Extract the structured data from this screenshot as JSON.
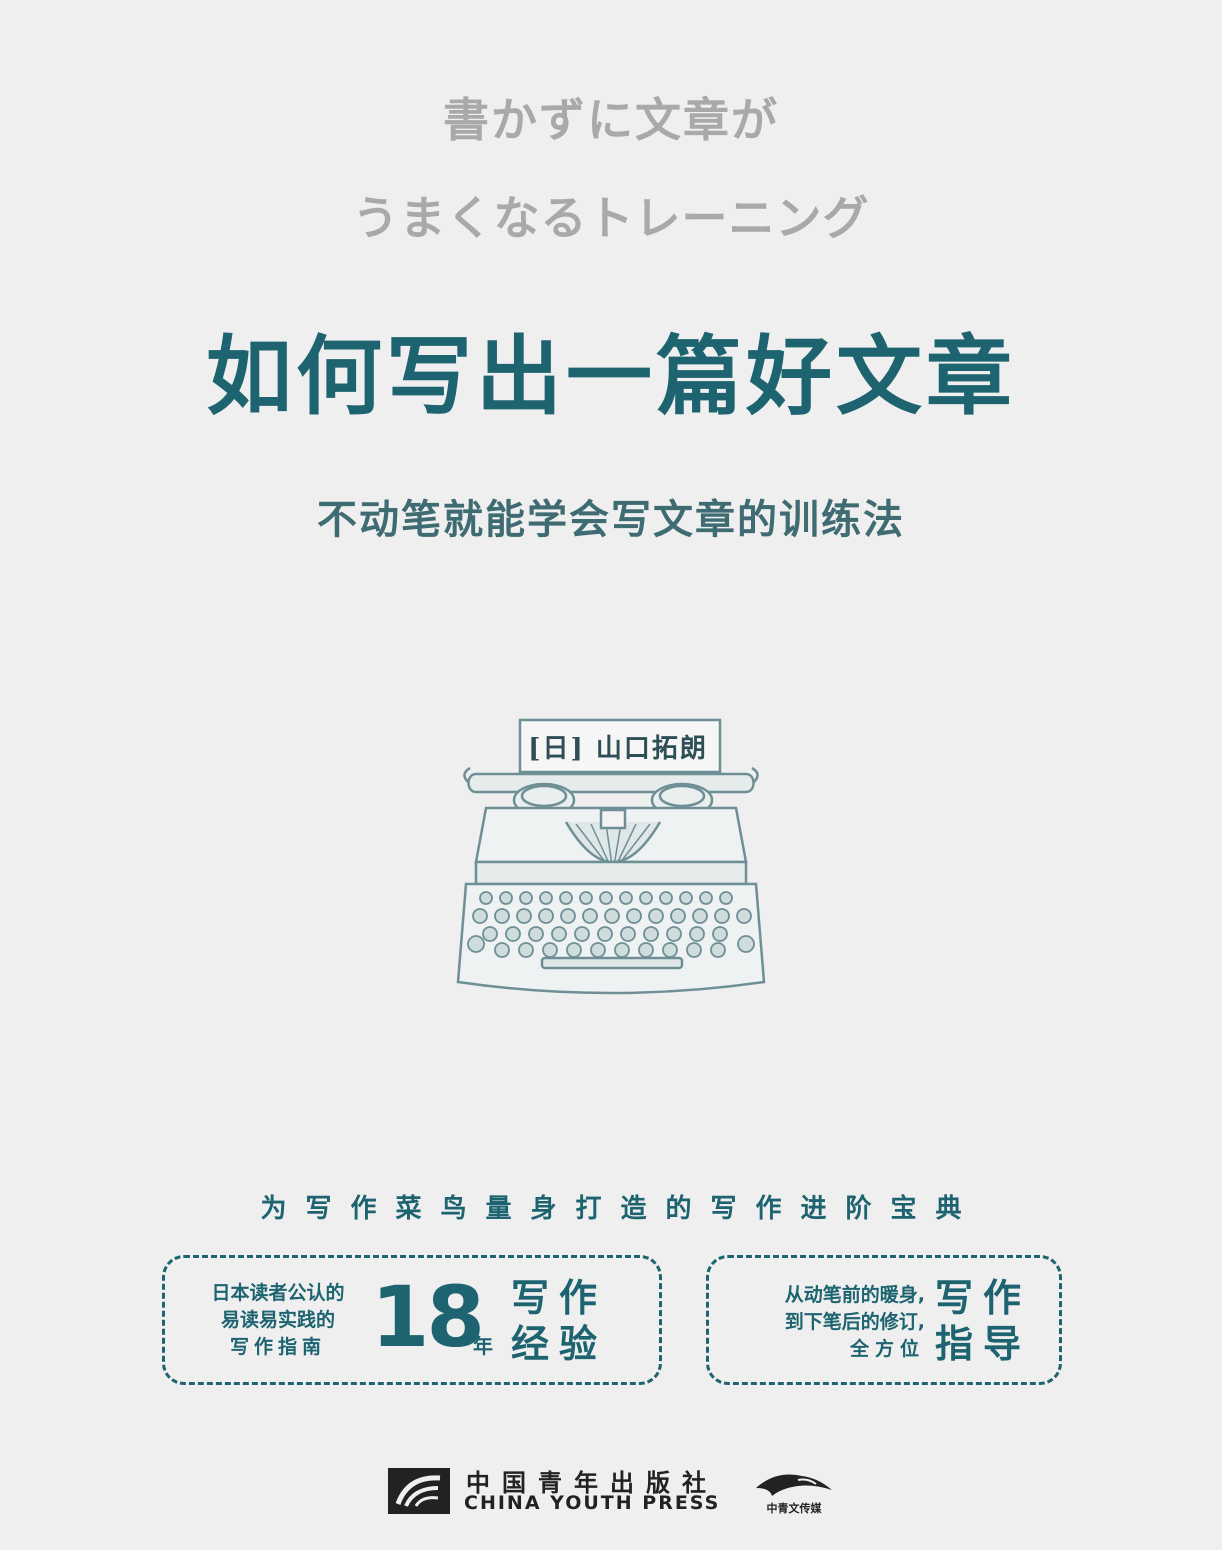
{
  "cover": {
    "japanese_title_line1": "書かずに文章が",
    "japanese_title_line2": "うまくなるトレーニング",
    "title": "如何写出一篇好文章",
    "subtitle": "不动笔就能学会写文章的训练法",
    "author": "[日] 山口拓朗",
    "tagline": "为写作菜鸟量身打造的写作进阶宝典"
  },
  "feature_left": {
    "small_lines": [
      "日本读者公认的",
      "易读易实践的",
      "写作指南"
    ],
    "number": "18",
    "unit": "年",
    "big_lines": [
      "写作",
      "经验"
    ]
  },
  "feature_right": {
    "small_lines": [
      "从动笔前的暖身,",
      "到下笔后的修订,",
      "全方位"
    ],
    "big_lines": [
      "写作",
      "指导"
    ]
  },
  "publisher": {
    "name_cn": "中国青年出版社",
    "name_en": "CHINA YOUTH PRESS",
    "imprint": "中青文传媒"
  },
  "colors": {
    "accent": "#1d6470",
    "subtitle": "#3f6b72",
    "japanese_text": "#a9a9a9",
    "background": "#efefef"
  },
  "icons": [
    "typewriter-illustration",
    "china-youth-press-logo",
    "eagle-logo"
  ]
}
